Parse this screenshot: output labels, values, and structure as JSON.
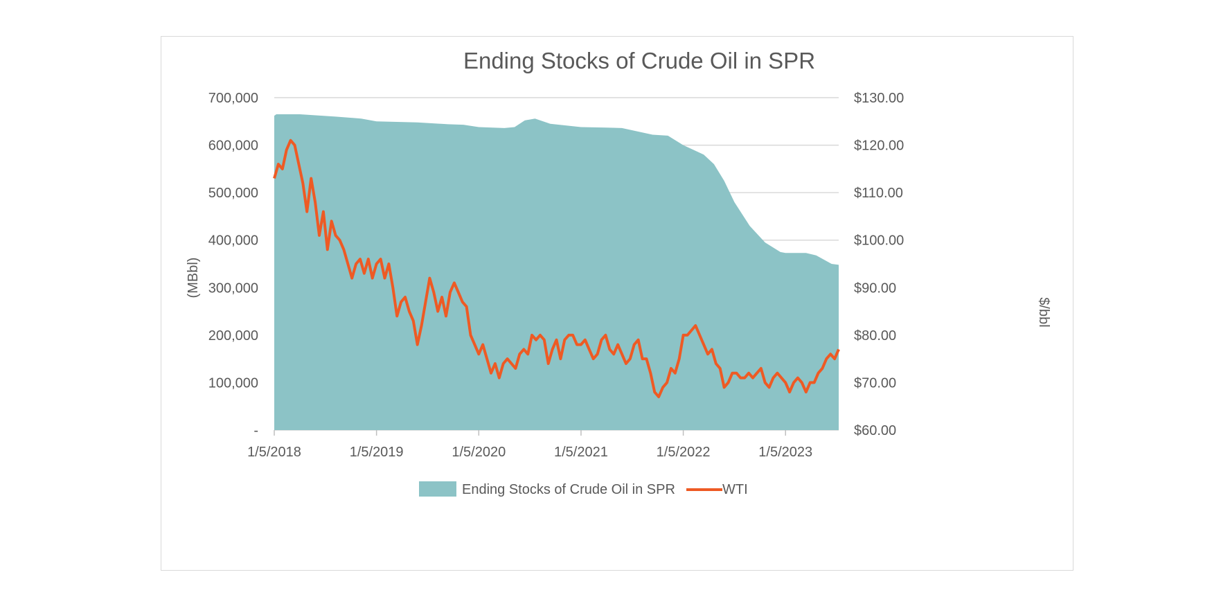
{
  "chart_data": {
    "type": "area",
    "title": "Ending Stocks of Crude Oil in SPR",
    "y_left_label": "(MBbl)",
    "y_right_label": "$/bbl",
    "x_ticks": [
      "1/5/2018",
      "1/5/2019",
      "1/5/2020",
      "1/5/2021",
      "1/5/2022",
      "1/5/2023"
    ],
    "y_left_ticks": [
      "-",
      "100,000",
      "200,000",
      "300,000",
      "400,000",
      "500,000",
      "600,000",
      "700,000"
    ],
    "y_right_ticks": [
      "$60.00",
      "$70.00",
      "$80.00",
      "$90.00",
      "$100.00",
      "$110.00",
      "$120.00",
      "$130.00"
    ],
    "y_left_range": [
      0,
      700000
    ],
    "y_right_range": [
      60,
      130
    ],
    "x_range": [
      2018.0,
      2023.52
    ],
    "grid": true,
    "legend_position": "bottom",
    "colors": {
      "area": "#8CC3C6",
      "line": "#EE5A24",
      "text": "#595959",
      "grid": "#d9d9d9"
    },
    "series": [
      {
        "name": "Ending Stocks of Crude Oil in SPR",
        "type": "area",
        "axis": "left",
        "x": [
          2018.0,
          2018.02,
          2018.25,
          2018.6,
          2018.85,
          2019.0,
          2019.2,
          2019.4,
          2019.7,
          2019.85,
          2020.0,
          2020.25,
          2020.35,
          2020.45,
          2020.55,
          2020.7,
          2021.0,
          2021.25,
          2021.4,
          2021.7,
          2021.85,
          2022.0,
          2022.1,
          2022.2,
          2022.3,
          2022.4,
          2022.5,
          2022.65,
          2022.8,
          2022.95,
          2023.0,
          2023.2,
          2023.3,
          2023.45,
          2023.52
        ],
        "values": [
          662000,
          665000,
          665000,
          660000,
          656000,
          650000,
          649000,
          648000,
          644000,
          643000,
          638000,
          636000,
          638000,
          652000,
          656000,
          645000,
          638000,
          637000,
          636000,
          622000,
          620000,
          600000,
          590000,
          580000,
          560000,
          525000,
          480000,
          430000,
          395000,
          375000,
          373000,
          373000,
          368000,
          350000,
          348000
        ]
      },
      {
        "name": "WTI",
        "type": "line",
        "axis": "right",
        "x": [
          2018.0,
          2018.04,
          2018.08,
          2018.12,
          2018.16,
          2018.2,
          2018.24,
          2018.28,
          2018.32,
          2018.36,
          2018.4,
          2018.44,
          2018.48,
          2018.52,
          2018.56,
          2018.6,
          2018.64,
          2018.68,
          2018.72,
          2018.76,
          2018.8,
          2018.84,
          2018.88,
          2018.92,
          2018.96,
          2019.0,
          2019.04,
          2019.08,
          2019.12,
          2019.16,
          2019.2,
          2019.24,
          2019.28,
          2019.32,
          2019.36,
          2019.4,
          2019.44,
          2019.48,
          2019.52,
          2019.56,
          2019.6,
          2019.64,
          2019.68,
          2019.72,
          2019.76,
          2019.8,
          2019.84,
          2019.88,
          2019.92,
          2019.96,
          2020.0,
          2020.04,
          2020.08,
          2020.12,
          2020.16,
          2020.2,
          2020.24,
          2020.28,
          2020.32,
          2020.36,
          2020.4,
          2020.44,
          2020.48,
          2020.52,
          2020.56,
          2020.6,
          2020.64,
          2020.68,
          2020.72,
          2020.76,
          2020.8,
          2020.84,
          2020.88,
          2020.92,
          2020.96,
          2021.0,
          2021.04,
          2021.08,
          2021.12,
          2021.16,
          2021.2,
          2021.24,
          2021.28,
          2021.32,
          2021.36,
          2021.4,
          2021.44,
          2021.48,
          2021.52,
          2021.56,
          2021.6,
          2021.64,
          2021.68,
          2021.72,
          2021.76,
          2021.8,
          2021.84,
          2021.88,
          2021.92,
          2021.96,
          2022.0,
          2022.04,
          2022.08,
          2022.12,
          2022.16,
          2022.2,
          2022.24,
          2022.28,
          2022.32,
          2022.36,
          2022.4,
          2022.44,
          2022.48,
          2022.52,
          2022.56,
          2022.6,
          2022.64,
          2022.68,
          2022.72,
          2022.76,
          2022.8,
          2022.84,
          2022.88,
          2022.92,
          2022.96,
          2023.0,
          2023.04,
          2023.08,
          2023.12,
          2023.16,
          2023.2,
          2023.24,
          2023.28,
          2023.32,
          2023.36,
          2023.4,
          2023.44,
          2023.48,
          2023.52
        ],
        "values": [
          113,
          116,
          115,
          119,
          121,
          120,
          116,
          112,
          106,
          113,
          108,
          101,
          106,
          98,
          104,
          101,
          100,
          98,
          95,
          92,
          95,
          96,
          93,
          96,
          92,
          95,
          96,
          92,
          95,
          90,
          84,
          87,
          88,
          85,
          83,
          78,
          82,
          87,
          92,
          89,
          85,
          88,
          84,
          89,
          91,
          89,
          87,
          86,
          80,
          78,
          76,
          78,
          75,
          72,
          74,
          71,
          74,
          75,
          74,
          73,
          76,
          77,
          76,
          80,
          79,
          80,
          79,
          74,
          77,
          79,
          75,
          79,
          80,
          80,
          78,
          78,
          79,
          77,
          75,
          76,
          79,
          80,
          77,
          76,
          78,
          76,
          74,
          75,
          78,
          79,
          75,
          75,
          72,
          68,
          67,
          69,
          70,
          73,
          72,
          75,
          80,
          80,
          81,
          82,
          80,
          78,
          76,
          77,
          74,
          73,
          69,
          70,
          72,
          72,
          71,
          71,
          72,
          71,
          72,
          73,
          70,
          69,
          71,
          72,
          71,
          70,
          68,
          70,
          71,
          70,
          68,
          70,
          70,
          72,
          73,
          75,
          76,
          75,
          77
        ]
      }
    ]
  }
}
